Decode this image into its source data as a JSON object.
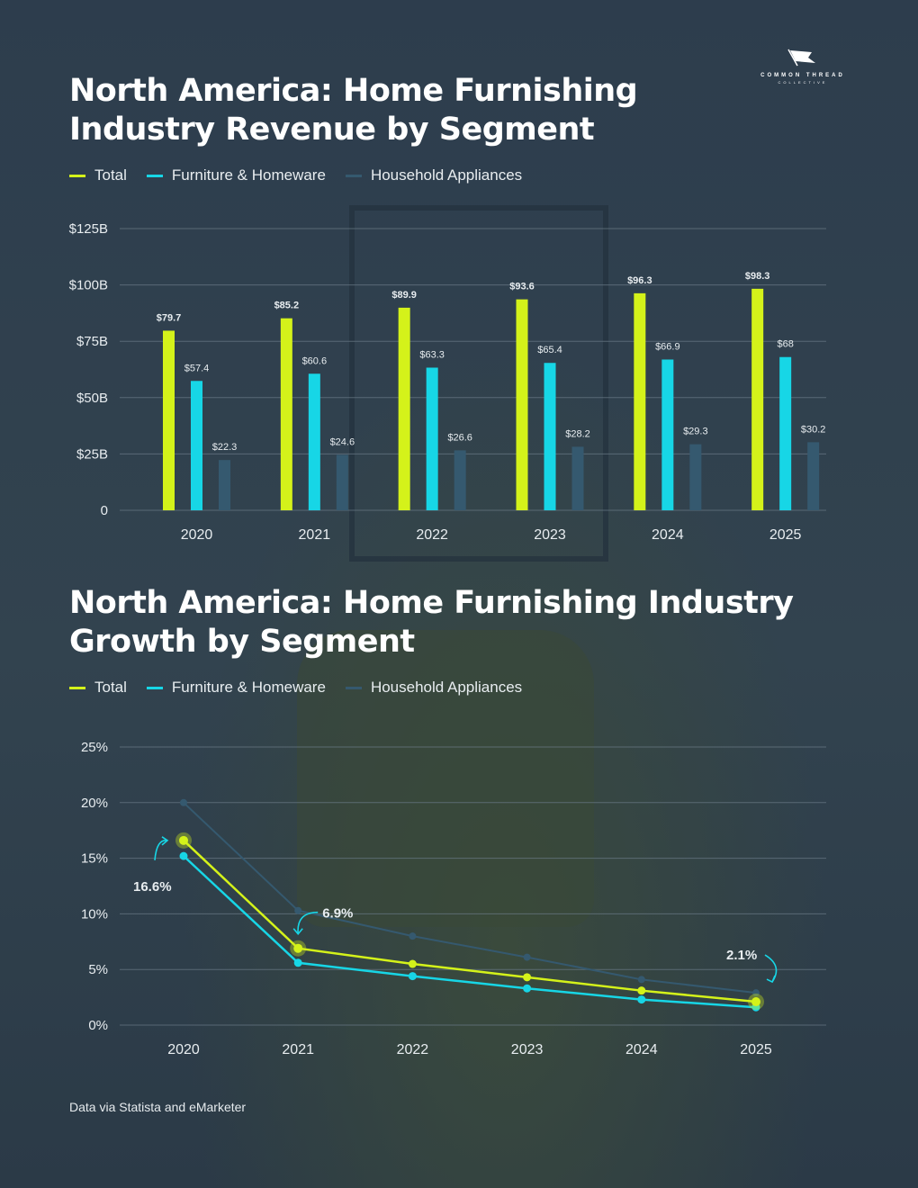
{
  "logo": {
    "name": "COMMON THREAD",
    "sub": "COLLECTIVE"
  },
  "colors": {
    "total": "#d4f21a",
    "furniture": "#17d6e6",
    "appliances": "#35596f",
    "grid": "#6b7b88",
    "text": "#e8edf0"
  },
  "legend": [
    {
      "label": "Total",
      "color": "#d4f21a"
    },
    {
      "label": "Furniture & Homeware",
      "color": "#17d6e6"
    },
    {
      "label": "Household Appliances",
      "color": "#35596f"
    }
  ],
  "source": "Data via Statista  and eMarketer",
  "chart_data": [
    {
      "type": "bar",
      "title": "North America: Home Furnishing Industry Revenue by Segment",
      "categories": [
        "2020",
        "2021",
        "2022",
        "2023",
        "2024",
        "2025"
      ],
      "series": [
        {
          "name": "Total",
          "values": [
            79.7,
            85.2,
            89.9,
            93.6,
            96.3,
            98.3
          ],
          "labels": [
            "$79.7",
            "$85.2",
            "$89.9",
            "$93.6",
            "$96.3",
            "$98.3"
          ]
        },
        {
          "name": "Furniture & Homeware",
          "values": [
            57.4,
            60.6,
            63.3,
            65.4,
            66.9,
            68
          ],
          "labels": [
            "$57.4",
            "$60.6",
            "$63.3",
            "$65.4",
            "$66.9",
            "$68"
          ]
        },
        {
          "name": "Household Appliances",
          "values": [
            22.3,
            24.6,
            26.6,
            28.2,
            29.3,
            30.2
          ],
          "labels": [
            "$22.3",
            "$24.6",
            "$26.6",
            "$28.2",
            "$29.3",
            "$30.2"
          ]
        }
      ],
      "ylim": [
        0,
        125
      ],
      "yticks": [
        0,
        25,
        50,
        75,
        100,
        125
      ],
      "ytick_labels": [
        "0",
        "$25B",
        "$50B",
        "$75B",
        "$100B",
        "$125B"
      ],
      "grid": true
    },
    {
      "type": "line",
      "title": "North America: Home Furnishing Industry Growth by Segment",
      "categories": [
        "2020",
        "2021",
        "2022",
        "2023",
        "2024",
        "2025"
      ],
      "series": [
        {
          "name": "Total",
          "values": [
            16.6,
            6.9,
            5.5,
            4.3,
            3.1,
            2.1
          ]
        },
        {
          "name": "Furniture & Homeware",
          "values": [
            15.2,
            5.6,
            4.4,
            3.3,
            2.3,
            1.6
          ]
        },
        {
          "name": "Household Appliances",
          "values": [
            20.0,
            10.3,
            8.0,
            6.1,
            4.1,
            2.9
          ]
        }
      ],
      "ylim": [
        0,
        25
      ],
      "yticks": [
        0,
        5,
        10,
        15,
        20,
        25
      ],
      "ytick_labels": [
        "0%",
        "5%",
        "10%",
        "15%",
        "20%",
        "25%"
      ],
      "annotations": [
        {
          "text": "16.6%",
          "category": "2020",
          "value": 16.6
        },
        {
          "text": "6.9%",
          "category": "2021",
          "value": 6.9
        },
        {
          "text": "2.1%",
          "category": "2025",
          "value": 2.1
        }
      ],
      "grid": true
    }
  ]
}
